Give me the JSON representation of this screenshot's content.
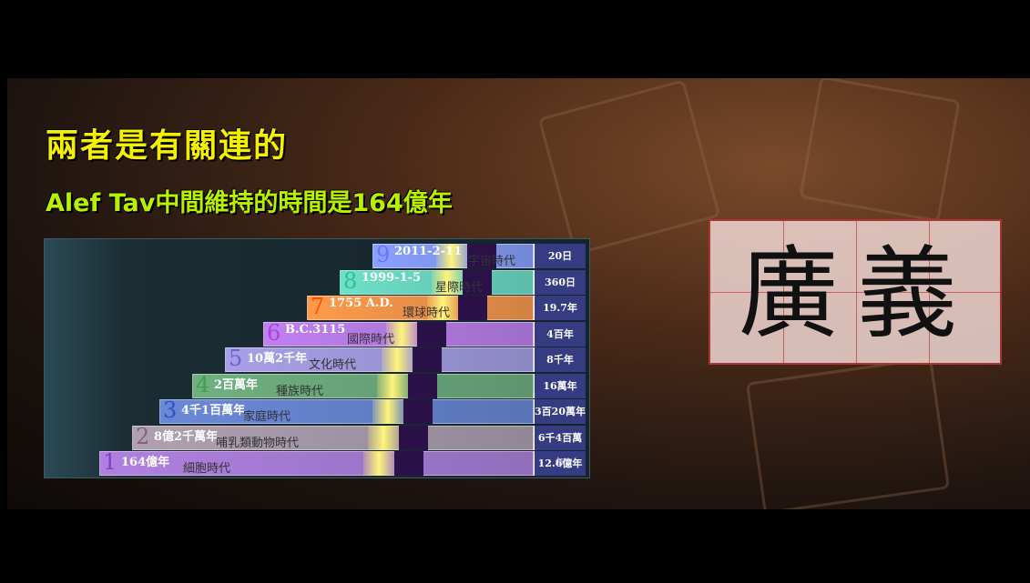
{
  "title": "兩者是有關連的",
  "subtitle": "Alef Tav中間維持的時間是164億年",
  "ages": [
    {
      "num": "9",
      "date": "2011-2-11",
      "era": "宇宙時代",
      "span": "20日"
    },
    {
      "num": "8",
      "date": "1999-1-5",
      "era": "星際時代",
      "span": "360日"
    },
    {
      "num": "7",
      "date": "1755 A.D.",
      "era": "環球時代",
      "span": "19.7年"
    },
    {
      "num": "6",
      "date": "B.C.3115",
      "era": "國際時代",
      "span": "4百年"
    },
    {
      "num": "5",
      "date": "10萬2千年",
      "era": "文化時代",
      "span": "8千年"
    },
    {
      "num": "4",
      "date": "2百萬年",
      "era": "種族時代",
      "span": "16萬年"
    },
    {
      "num": "3",
      "date": "4千1百萬年",
      "era": "家庭時代",
      "span": "3百20萬年"
    },
    {
      "num": "2",
      "date": "8億2千萬年",
      "era": "哺乳類動物時代",
      "span": "6千4百萬年"
    },
    {
      "num": "1",
      "date": "164億年",
      "era": "細胞時代",
      "span": "12.6億年"
    }
  ],
  "word": "廣義"
}
